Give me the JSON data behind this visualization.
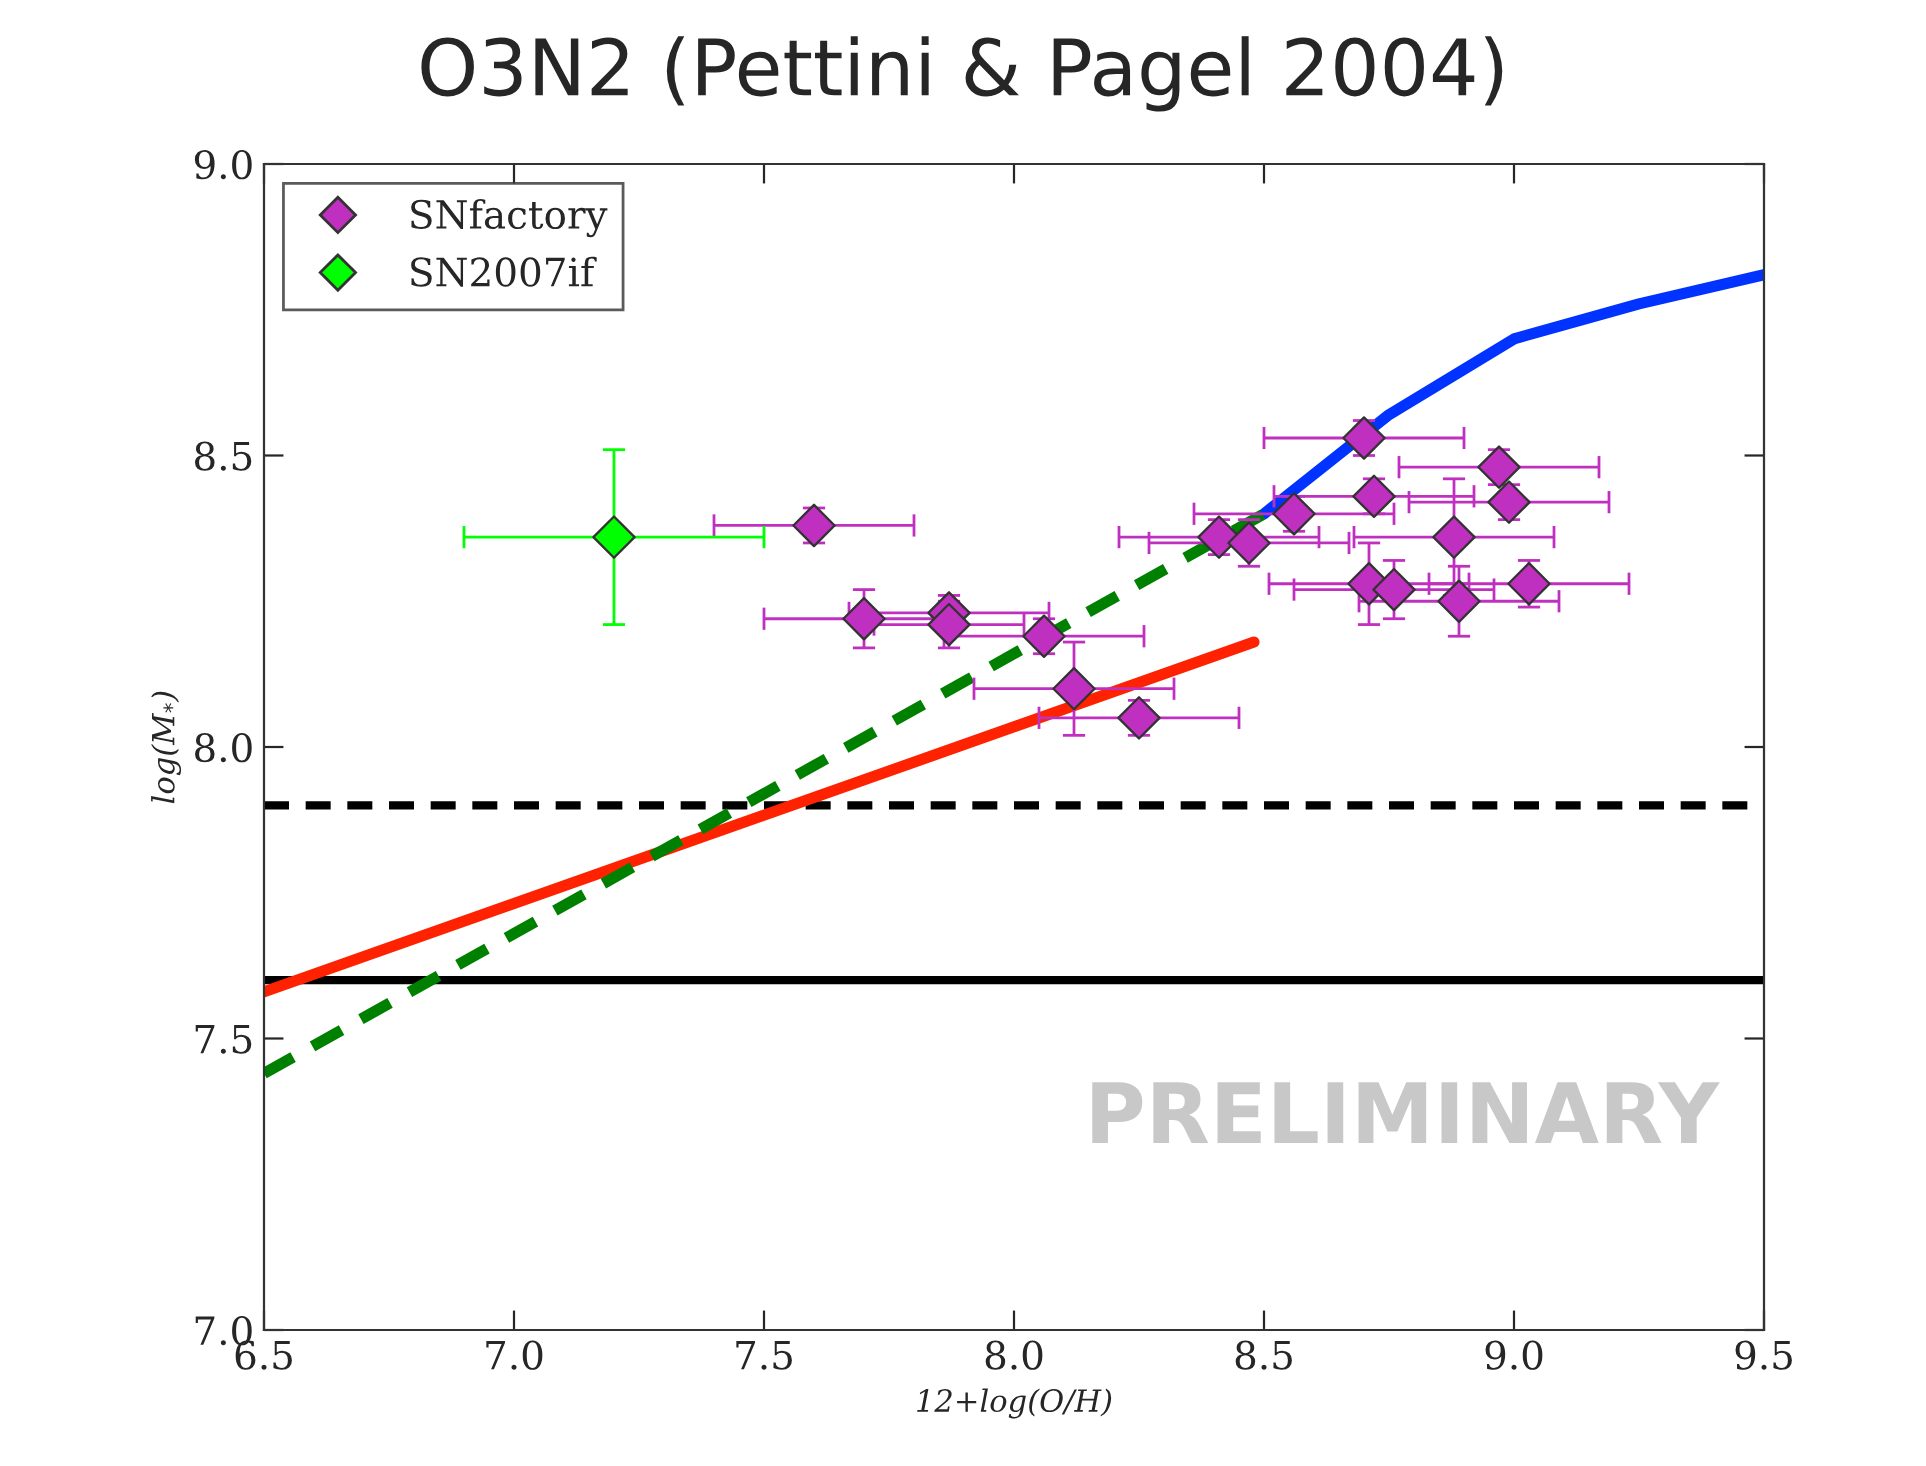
{
  "chart_data": {
    "type": "scatter",
    "title": "O3N2 (Pettini & Pagel 2004)",
    "xlabel": "12+log(O/H)",
    "ylabel": "log(M$_{*}$)",
    "xlim": [
      6.5,
      9.5
    ],
    "xticks": [
      6.5,
      {
        "value": 7,
        "label": "7.0"
      },
      7.5,
      {
        "value": 8,
        "label": "8.0"
      },
      8.5,
      {
        "value": 9,
        "label": "9.0"
      },
      9.5
    ],
    "ylim": [
      7.0,
      9.0
    ],
    "yticks": [
      {
        "value": 7,
        "label": "7.0"
      },
      7.5,
      {
        "value": 8,
        "label": "8.0"
      },
      8.5,
      {
        "value": 9,
        "label": "9.0"
      }
    ],
    "grid": false,
    "legend": "top left",
    "series": [
      {
        "name": "SNfactory",
        "color": "#c030c0",
        "marker": "diamond",
        "x": [
          7.6,
          7.7,
          7.87,
          7.87,
          8.06,
          8.12,
          8.25,
          8.41,
          8.47,
          8.56,
          8.7,
          8.72,
          8.71,
          8.76,
          8.88,
          8.89,
          8.97,
          8.99,
          9.03
        ],
        "values": [
          8.38,
          8.22,
          8.23,
          8.21,
          8.19,
          8.1,
          8.05,
          8.36,
          8.35,
          8.4,
          8.53,
          8.43,
          8.28,
          8.27,
          8.36,
          8.25,
          8.48,
          8.42,
          8.28
        ],
        "errors": [
          0.03,
          0.05,
          0.03,
          0.04,
          0.03,
          0.08,
          0.03,
          0.03,
          0.04,
          0.03,
          0.03,
          0.03,
          0.07,
          0.05,
          0.1,
          0.06,
          0.03,
          0.03,
          0.04
        ],
        "xerrors": [
          0.2,
          0.2,
          0.2,
          0.15,
          0.2,
          0.2,
          0.2,
          0.2,
          0.2,
          0.2,
          0.2,
          0.2,
          0.2,
          0.2,
          0.2,
          0.2,
          0.2,
          0.2,
          0.2
        ]
      },
      {
        "name": "SN2007if",
        "color": "#00ff00",
        "marker": "diamond",
        "x": [
          7.2
        ],
        "values": [
          8.36
        ],
        "errors": [
          0.15
        ],
        "xerrors": [
          0.3
        ]
      },
      {
        "type": "line",
        "color": "#0033ff",
        "x": [
          8.5,
          8.75,
          9.0,
          9.25,
          9.5
        ],
        "values": [
          8.4,
          8.57,
          8.7,
          8.76,
          8.81
        ],
        "line_style": "solid"
      },
      {
        "type": "line",
        "color": "#ff2200",
        "x": [
          6.5,
          8.48
        ],
        "values": [
          7.58,
          8.18
        ],
        "line_style": "solid"
      },
      {
        "type": "line",
        "color": "#008000",
        "x": [
          6.5,
          8.5
        ],
        "values": [
          7.44,
          8.4
        ],
        "line_style": "dashed"
      }
    ],
    "ref_lines": [
      {
        "axis": "y",
        "value": 7.9,
        "color": "#000000",
        "line_style": "dashed"
      },
      {
        "axis": "y",
        "value": 7.6,
        "color": "#000000",
        "line_style": "solid"
      }
    ],
    "annotations": [
      "PRELIMINARY"
    ]
  }
}
